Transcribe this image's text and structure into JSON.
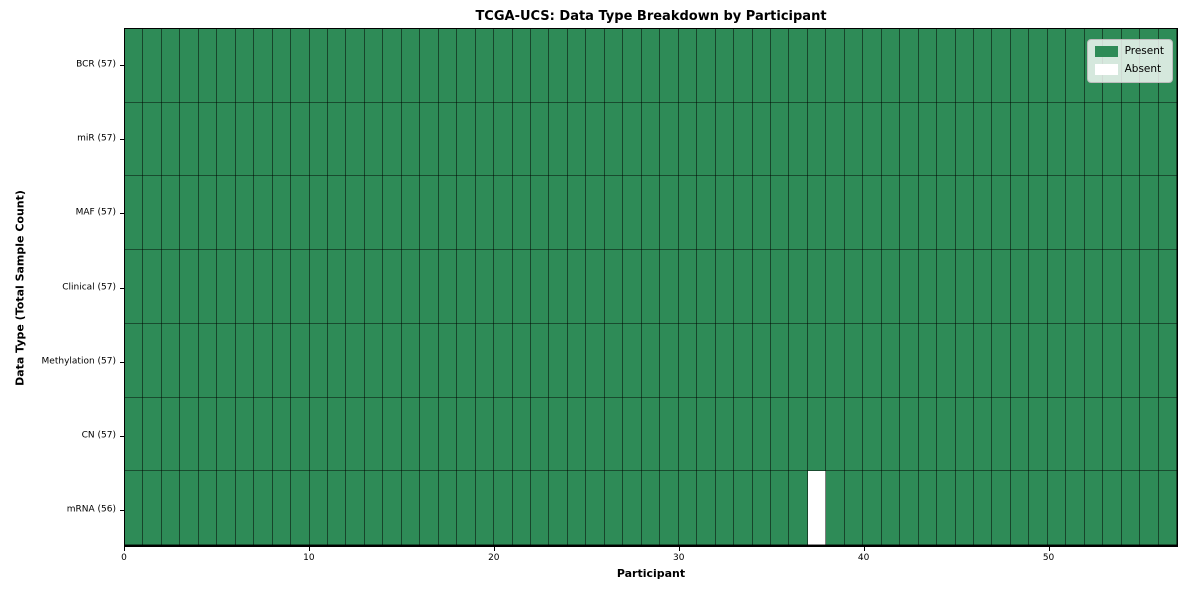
{
  "chart_data": {
    "type": "heatmap",
    "title": "TCGA-UCS: Data Type Breakdown by Participant",
    "xlabel": "Participant",
    "ylabel": "Data Type (Total Sample Count)",
    "xlim": [
      0,
      57
    ],
    "x_ticks": [
      0,
      10,
      20,
      30,
      40,
      50
    ],
    "n_participants": 57,
    "grid": false,
    "legend_position": "upper right",
    "legend": [
      {
        "label": "Present",
        "color": "#2e8b57"
      },
      {
        "label": "Absent",
        "color": "#ffffff"
      }
    ],
    "rows": [
      {
        "data_type": "BCR",
        "label": "BCR (57)",
        "total_samples": 57,
        "absent_participants": []
      },
      {
        "data_type": "miR",
        "label": "miR (57)",
        "total_samples": 57,
        "absent_participants": []
      },
      {
        "data_type": "MAF",
        "label": "MAF (57)",
        "total_samples": 57,
        "absent_participants": []
      },
      {
        "data_type": "Clinical",
        "label": "Clinical (57)",
        "total_samples": 57,
        "absent_participants": []
      },
      {
        "data_type": "Methylation",
        "label": "Methylation (57)",
        "total_samples": 57,
        "absent_participants": []
      },
      {
        "data_type": "CN",
        "label": "CN (57)",
        "total_samples": 57,
        "absent_participants": []
      },
      {
        "data_type": "mRNA",
        "label": "mRNA (56)",
        "total_samples": 56,
        "absent_participants": [
          37
        ]
      }
    ]
  }
}
